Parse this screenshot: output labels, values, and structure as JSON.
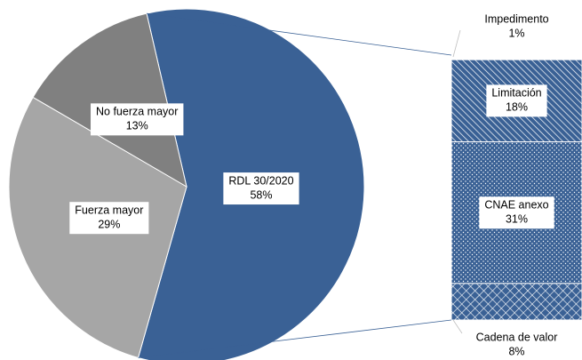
{
  "chart_data": [
    {
      "type": "pie",
      "categories": [
        "RDL 30/2020",
        "Fuerza mayor",
        "No fuerza mayor"
      ],
      "values": [
        58,
        29,
        13
      ],
      "value_labels": [
        "58%",
        "29%",
        "13%"
      ],
      "colors": [
        "#3a6195",
        "#a6a6a6",
        "#808080"
      ]
    },
    {
      "type": "bar",
      "categories": [
        "Impedimento",
        "Limitación",
        "CNAE anexo",
        "Cadena de valor"
      ],
      "values": [
        1,
        18,
        31,
        8
      ],
      "value_labels": [
        "1%",
        "18%",
        "31%",
        "8%"
      ],
      "color": "#3a6195",
      "patterns": [
        "none",
        "diagonal",
        "dots",
        "crosshatch"
      ]
    }
  ]
}
